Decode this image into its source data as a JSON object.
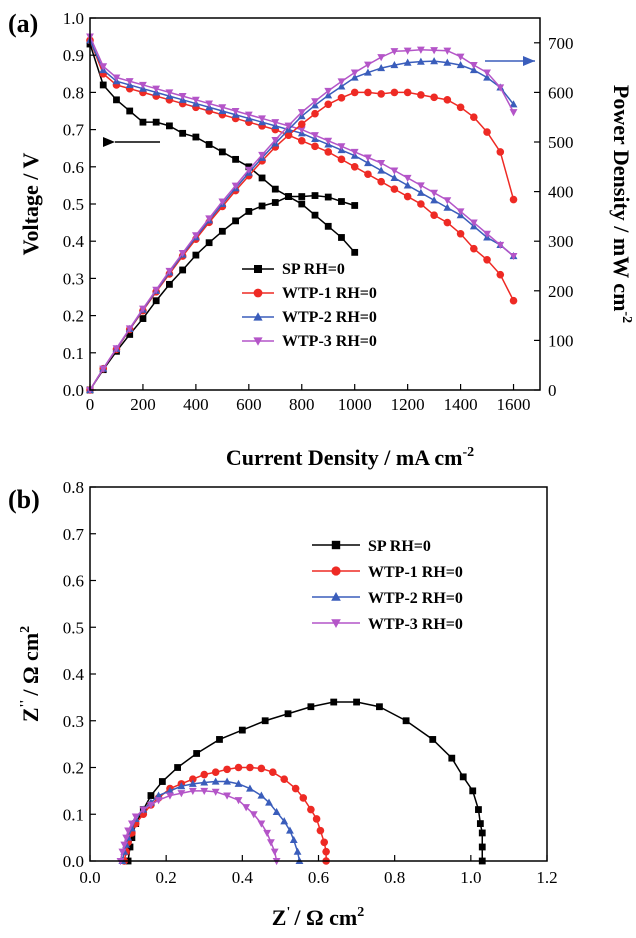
{
  "colors": {
    "SP": "#000000",
    "WTP-1": "#ee2a24",
    "WTP-2": "#3a5dbb",
    "WTP-3": "#b455c8"
  },
  "markers": {
    "SP": "square",
    "WTP-1": "circle",
    "WTP-2": "triangle-up",
    "WTP-3": "triangle-down"
  },
  "chart_data": [
    {
      "panel_label": "(a)",
      "type": "line",
      "xlabel": "Current Density / mA cm",
      "xlabel_sup": "-2",
      "ylabel": "Voltage / V",
      "y2label": "Power Density / mW cm",
      "y2label_sup": "-2",
      "xlim": [
        0,
        1700
      ],
      "ylim": [
        0,
        1.0
      ],
      "y2lim": [
        0,
        750
      ],
      "xticks": [
        0,
        200,
        400,
        600,
        800,
        1000,
        1200,
        1400,
        1600
      ],
      "yticks": [
        0.0,
        0.1,
        0.2,
        0.3,
        0.4,
        0.5,
        0.6,
        0.7,
        0.8,
        0.9,
        1.0
      ],
      "y2ticks": [
        0,
        100,
        200,
        300,
        400,
        500,
        600,
        700
      ],
      "legend_position": "center-right",
      "legend": [
        "SP RH=0",
        "WTP-1 RH=0",
        "WTP-2 RH=0",
        "WTP-3 RH=0"
      ],
      "annotations": [
        "arrow pointing left to voltage axis",
        "arrow pointing right to power density axis"
      ],
      "series": [
        {
          "name": "SP RH=0",
          "key": "SP",
          "axis": "left",
          "kind": "voltage",
          "x": [
            0,
            50,
            100,
            150,
            200,
            250,
            300,
            350,
            400,
            450,
            500,
            550,
            600,
            650,
            700,
            750,
            800,
            850,
            900,
            950,
            1000
          ],
          "y": [
            0.93,
            0.82,
            0.78,
            0.75,
            0.72,
            0.72,
            0.71,
            0.69,
            0.68,
            0.66,
            0.64,
            0.62,
            0.6,
            0.57,
            0.54,
            0.52,
            0.5,
            0.47,
            0.44,
            0.41,
            0.37
          ]
        },
        {
          "name": "WTP-1 RH=0",
          "key": "WTP-1",
          "axis": "left",
          "kind": "voltage",
          "x": [
            0,
            50,
            100,
            150,
            200,
            250,
            300,
            350,
            400,
            450,
            500,
            550,
            600,
            650,
            700,
            750,
            800,
            850,
            900,
            950,
            1000,
            1050,
            1100,
            1150,
            1200,
            1250,
            1300,
            1350,
            1400,
            1450,
            1500,
            1550,
            1600
          ],
          "y": [
            0.94,
            0.85,
            0.82,
            0.81,
            0.8,
            0.79,
            0.78,
            0.77,
            0.76,
            0.75,
            0.74,
            0.73,
            0.72,
            0.71,
            0.7,
            0.685,
            0.67,
            0.655,
            0.64,
            0.62,
            0.6,
            0.58,
            0.56,
            0.54,
            0.52,
            0.5,
            0.47,
            0.45,
            0.42,
            0.38,
            0.35,
            0.31,
            0.24
          ]
        },
        {
          "name": "WTP-2 RH=0",
          "key": "WTP-2",
          "axis": "left",
          "kind": "voltage",
          "x": [
            0,
            50,
            100,
            150,
            200,
            250,
            300,
            350,
            400,
            450,
            500,
            550,
            600,
            650,
            700,
            750,
            800,
            850,
            900,
            950,
            1000,
            1050,
            1100,
            1150,
            1200,
            1250,
            1300,
            1350,
            1400,
            1450,
            1500,
            1550,
            1600
          ],
          "y": [
            0.94,
            0.86,
            0.83,
            0.82,
            0.81,
            0.8,
            0.79,
            0.78,
            0.77,
            0.76,
            0.75,
            0.74,
            0.73,
            0.72,
            0.71,
            0.7,
            0.69,
            0.675,
            0.66,
            0.645,
            0.63,
            0.61,
            0.59,
            0.57,
            0.55,
            0.53,
            0.51,
            0.49,
            0.47,
            0.44,
            0.41,
            0.39,
            0.36
          ]
        },
        {
          "name": "WTP-3 RH=0",
          "key": "WTP-3",
          "axis": "left",
          "kind": "voltage",
          "x": [
            0,
            50,
            100,
            150,
            200,
            250,
            300,
            350,
            400,
            450,
            500,
            550,
            600,
            650,
            700,
            750,
            800,
            850,
            900,
            950,
            1000,
            1050,
            1100,
            1150,
            1200,
            1250,
            1300,
            1350,
            1400,
            1450,
            1500,
            1550,
            1600
          ],
          "y": [
            0.95,
            0.87,
            0.84,
            0.83,
            0.82,
            0.81,
            0.8,
            0.79,
            0.78,
            0.77,
            0.76,
            0.75,
            0.74,
            0.73,
            0.72,
            0.71,
            0.7,
            0.685,
            0.67,
            0.655,
            0.64,
            0.625,
            0.61,
            0.59,
            0.57,
            0.55,
            0.53,
            0.51,
            0.48,
            0.45,
            0.42,
            0.39,
            0.36
          ]
        },
        {
          "name": "SP RH=0",
          "key": "SP",
          "axis": "right",
          "kind": "power",
          "x": [
            0,
            50,
            100,
            150,
            200,
            250,
            300,
            350,
            400,
            450,
            500,
            550,
            600,
            650,
            700,
            750,
            800,
            850,
            900,
            950,
            1000
          ],
          "y": [
            0,
            41,
            78,
            112,
            144,
            180,
            213,
            242,
            272,
            297,
            320,
            341,
            360,
            371,
            378,
            390,
            390,
            392,
            389,
            380,
            372
          ]
        },
        {
          "name": "WTP-1 RH=0",
          "key": "WTP-1",
          "axis": "right",
          "kind": "power",
          "x": [
            0,
            50,
            100,
            150,
            200,
            250,
            300,
            350,
            400,
            450,
            500,
            550,
            600,
            650,
            700,
            750,
            800,
            850,
            900,
            950,
            1000,
            1050,
            1100,
            1150,
            1200,
            1250,
            1300,
            1350,
            1400,
            1450,
            1500,
            1550,
            1600
          ],
          "y": [
            0,
            43,
            82,
            122,
            160,
            198,
            234,
            270,
            304,
            338,
            370,
            402,
            432,
            462,
            490,
            514,
            536,
            557,
            576,
            589,
            600,
            600,
            597,
            600,
            600,
            595,
            590,
            585,
            570,
            550,
            520,
            480,
            384
          ]
        },
        {
          "name": "WTP-2 RH=0",
          "key": "WTP-2",
          "axis": "right",
          "kind": "power",
          "x": [
            0,
            50,
            100,
            150,
            200,
            250,
            300,
            350,
            400,
            450,
            500,
            550,
            600,
            650,
            700,
            750,
            800,
            850,
            900,
            950,
            1000,
            1050,
            1100,
            1150,
            1200,
            1250,
            1300,
            1350,
            1400,
            1450,
            1500,
            1550,
            1600
          ],
          "y": [
            0,
            43,
            83,
            123,
            162,
            200,
            237,
            273,
            308,
            342,
            375,
            407,
            438,
            468,
            497,
            525,
            552,
            574,
            594,
            612,
            630,
            640,
            649,
            655,
            660,
            662,
            663,
            660,
            655,
            645,
            630,
            610,
            576
          ]
        },
        {
          "name": "WTP-3 RH=0",
          "key": "WTP-3",
          "axis": "right",
          "kind": "power",
          "x": [
            0,
            50,
            100,
            150,
            200,
            250,
            300,
            350,
            400,
            450,
            500,
            550,
            600,
            650,
            700,
            750,
            800,
            850,
            900,
            950,
            1000,
            1050,
            1100,
            1150,
            1200,
            1250,
            1300,
            1350,
            1400,
            1450,
            1500,
            1550,
            1600
          ],
          "y": [
            0,
            43,
            84,
            124,
            164,
            202,
            240,
            276,
            312,
            346,
            380,
            412,
            444,
            474,
            504,
            533,
            560,
            582,
            603,
            622,
            640,
            656,
            671,
            683,
            684,
            686,
            685,
            684,
            672,
            655,
            640,
            610,
            560
          ]
        }
      ]
    },
    {
      "panel_label": "(b)",
      "type": "line",
      "xlabel": "Z",
      "xlabel_prime": "'",
      "xlabel_unit": "/ Ω cm",
      "xlabel_sup": "2",
      "ylabel": "Z",
      "ylabel_prime": "''",
      "ylabel_unit": "/ Ω cm",
      "ylabel_sup": "2",
      "xlim": [
        0.0,
        1.2
      ],
      "ylim": [
        0.0,
        0.8
      ],
      "xticks": [
        0.0,
        0.2,
        0.4,
        0.6,
        0.8,
        1.0,
        1.2
      ],
      "yticks": [
        0.0,
        0.1,
        0.2,
        0.3,
        0.4,
        0.5,
        0.6,
        0.7,
        0.8
      ],
      "legend_position": "top-right",
      "legend": [
        "SP RH=0",
        "WTP-1 RH=0",
        "WTP-2 RH=0",
        "WTP-3 RH=0"
      ],
      "series": [
        {
          "name": "SP RH=0",
          "key": "SP",
          "x": [
            0.1,
            0.105,
            0.11,
            0.12,
            0.14,
            0.16,
            0.19,
            0.23,
            0.28,
            0.34,
            0.4,
            0.46,
            0.52,
            0.58,
            0.64,
            0.7,
            0.76,
            0.83,
            0.9,
            0.95,
            0.98,
            1.005,
            1.02,
            1.025,
            1.03,
            1.03,
            1.03
          ],
          "y": [
            0.0,
            0.03,
            0.05,
            0.08,
            0.11,
            0.14,
            0.17,
            0.2,
            0.23,
            0.26,
            0.28,
            0.3,
            0.315,
            0.33,
            0.34,
            0.34,
            0.33,
            0.3,
            0.26,
            0.22,
            0.18,
            0.15,
            0.11,
            0.08,
            0.06,
            0.03,
            0.0
          ]
        },
        {
          "name": "WTP-1 RH=0",
          "key": "WTP-1",
          "x": [
            0.09,
            0.095,
            0.1,
            0.11,
            0.12,
            0.14,
            0.16,
            0.18,
            0.21,
            0.24,
            0.27,
            0.3,
            0.33,
            0.36,
            0.39,
            0.42,
            0.45,
            0.48,
            0.51,
            0.54,
            0.56,
            0.58,
            0.595,
            0.605,
            0.615,
            0.62,
            0.62
          ],
          "y": [
            0.0,
            0.02,
            0.04,
            0.06,
            0.08,
            0.1,
            0.12,
            0.135,
            0.155,
            0.165,
            0.175,
            0.185,
            0.19,
            0.196,
            0.2,
            0.2,
            0.198,
            0.19,
            0.175,
            0.155,
            0.135,
            0.11,
            0.09,
            0.065,
            0.04,
            0.02,
            0.0
          ]
        },
        {
          "name": "WTP-2 RH=0",
          "key": "WTP-2",
          "x": [
            0.085,
            0.09,
            0.095,
            0.1,
            0.11,
            0.12,
            0.14,
            0.16,
            0.18,
            0.21,
            0.24,
            0.27,
            0.3,
            0.33,
            0.36,
            0.39,
            0.42,
            0.45,
            0.47,
            0.49,
            0.51,
            0.525,
            0.535,
            0.545,
            0.55
          ],
          "y": [
            0.0,
            0.02,
            0.035,
            0.05,
            0.07,
            0.09,
            0.11,
            0.125,
            0.14,
            0.15,
            0.16,
            0.165,
            0.168,
            0.17,
            0.17,
            0.165,
            0.155,
            0.14,
            0.125,
            0.105,
            0.085,
            0.065,
            0.045,
            0.02,
            0.0
          ]
        },
        {
          "name": "WTP-3 RH=0",
          "key": "WTP-3",
          "x": [
            0.08,
            0.085,
            0.09,
            0.095,
            0.1,
            0.11,
            0.12,
            0.14,
            0.16,
            0.18,
            0.21,
            0.24,
            0.27,
            0.3,
            0.33,
            0.36,
            0.39,
            0.41,
            0.43,
            0.45,
            0.465,
            0.475,
            0.485,
            0.49
          ],
          "y": [
            0.0,
            0.02,
            0.035,
            0.05,
            0.065,
            0.08,
            0.095,
            0.11,
            0.12,
            0.13,
            0.14,
            0.145,
            0.15,
            0.15,
            0.148,
            0.14,
            0.13,
            0.115,
            0.1,
            0.08,
            0.06,
            0.04,
            0.02,
            0.0
          ]
        }
      ]
    }
  ]
}
